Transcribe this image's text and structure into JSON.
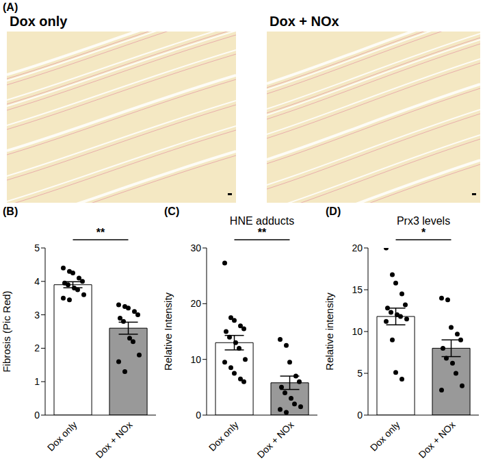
{
  "panel_A": {
    "panel": "(A)",
    "images": [
      {
        "title": "Dox only"
      },
      {
        "title": "Dox + NOx"
      }
    ]
  },
  "chart_data": [
    {
      "panel": "(B)",
      "type": "bar",
      "y_label": "Fibrosis (Pic Red)",
      "categories": [
        "Dox only",
        "Dox + NOx"
      ],
      "values": [
        3.9,
        2.6
      ],
      "errors": [
        0.09,
        0.18
      ],
      "points": [
        [
          4.4,
          4.3,
          4.25,
          4.1,
          4.0,
          3.95,
          3.9,
          3.8,
          3.75,
          3.6,
          3.5,
          3.45
        ],
        [
          3.3,
          3.25,
          3.2,
          3.1,
          3.0,
          2.9,
          2.8,
          2.3,
          2.2,
          1.8,
          1.6,
          1.3
        ]
      ],
      "colors": [
        "#ffffff",
        "#999999"
      ],
      "ylim": [
        0,
        5
      ],
      "yticks": [
        0,
        1,
        2,
        3,
        4,
        5
      ],
      "annotation": "**"
    },
    {
      "panel": "(C)",
      "type": "bar",
      "title": "HNE adducts",
      "y_label": "Relative Intensity",
      "categories": [
        "Dox only",
        "Dox + NOx"
      ],
      "values": [
        13.0,
        5.8
      ],
      "errors": [
        1.3,
        1.2
      ],
      "points": [
        [
          27.3,
          17.5,
          17.0,
          16.0,
          15.5,
          15.0,
          14.0,
          13.0,
          12.0,
          10.0,
          9.5,
          8.5,
          7.5,
          6.5,
          6.0
        ],
        [
          13.6,
          12.5,
          9.5,
          7.0,
          6.0,
          5.0,
          4.0,
          3.0,
          2.0,
          1.5,
          1.0,
          0.5
        ]
      ],
      "colors": [
        "#ffffff",
        "#999999"
      ],
      "ylim": [
        0,
        30
      ],
      "yticks": [
        0,
        10,
        20,
        30
      ],
      "annotation": "**"
    },
    {
      "panel": "(D)",
      "type": "bar",
      "title": "Prx3 levels",
      "y_label": "Relative intensity",
      "categories": [
        "Dox only",
        "Dox + NOx"
      ],
      "values": [
        11.8,
        8.0
      ],
      "errors": [
        1.0,
        1.0
      ],
      "points": [
        [
          20.0,
          16.8,
          15.8,
          14.5,
          13.2,
          12.8,
          12.3,
          12.0,
          11.8,
          11.5,
          11.2,
          9.0,
          5.1,
          4.3
        ],
        [
          14.0,
          13.8,
          10.5,
          9.7,
          9.0,
          8.0,
          6.8,
          6.2,
          5.0,
          3.5,
          3.0
        ]
      ],
      "colors": [
        "#ffffff",
        "#999999"
      ],
      "ylim": [
        0,
        20
      ],
      "yticks": [
        0,
        5,
        10,
        15,
        20
      ],
      "annotation": "*"
    }
  ]
}
